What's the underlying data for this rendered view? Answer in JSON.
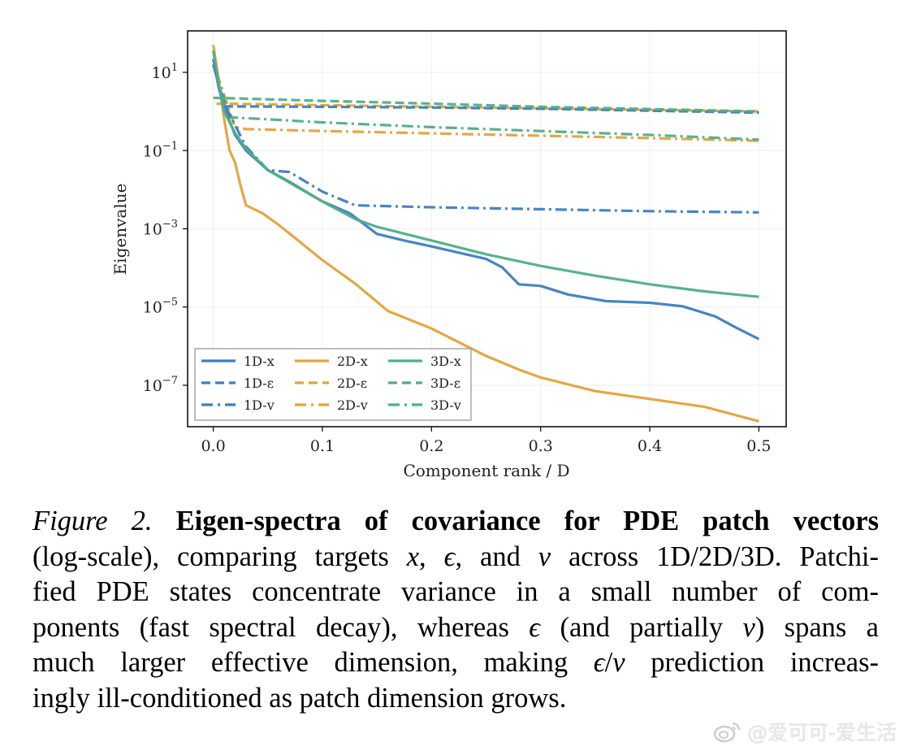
{
  "chart_data": {
    "type": "line",
    "title": "",
    "xlabel": "Component rank / D",
    "ylabel": "Eigenvalue",
    "xscale": "linear",
    "yscale": "log",
    "xlim": [
      -0.0235,
      0.525
    ],
    "ylim_log10": [
      -8.06,
      2.06
    ],
    "xticks": [
      0.0,
      0.1,
      0.2,
      0.3,
      0.4,
      0.5
    ],
    "xtick_labels": [
      "0.0",
      "0.1",
      "0.2",
      "0.3",
      "0.4",
      "0.5"
    ],
    "yticks_log10": [
      1,
      -1,
      -3,
      -5,
      -7
    ],
    "ytick_labels": [
      {
        "base": "10",
        "exp": "1"
      },
      {
        "base": "10",
        "exp": "−1"
      },
      {
        "base": "10",
        "exp": "−3"
      },
      {
        "base": "10",
        "exp": "−5"
      },
      {
        "base": "10",
        "exp": "−7"
      }
    ],
    "grid": true,
    "legend": {
      "placement": "lower-left",
      "columns": 3
    },
    "series": [
      {
        "name": "1D-x",
        "color": "#3d7ebf",
        "dash": "solid",
        "x": [
          0.0,
          0.005,
          0.01,
          0.02,
          0.03,
          0.05,
          0.07,
          0.1,
          0.125,
          0.15,
          0.175,
          0.2,
          0.25,
          0.265,
          0.28,
          0.3,
          0.325,
          0.36,
          0.4,
          0.43,
          0.46,
          0.48,
          0.5
        ],
        "log10_y": [
          1.34,
          0.6,
          0.1,
          -0.6,
          -1.0,
          -1.5,
          -1.8,
          -2.3,
          -2.6,
          -3.13,
          -3.3,
          -3.45,
          -3.77,
          -3.99,
          -4.42,
          -4.46,
          -4.68,
          -4.85,
          -4.89,
          -4.98,
          -5.24,
          -5.54,
          -5.82
        ]
      },
      {
        "name": "1D-ε",
        "color": "#3d7ebf",
        "dash": "dashed",
        "x": [
          0.01,
          0.1,
          0.2,
          0.3,
          0.4,
          0.5
        ],
        "log10_y": [
          0.13,
          0.12,
          0.1,
          0.07,
          0.02,
          -0.03
        ]
      },
      {
        "name": "1D-v",
        "color": "#3d7ebf",
        "dash": "dashdot",
        "x": [
          0.0,
          0.01,
          0.02,
          0.03,
          0.05,
          0.07,
          0.1,
          0.13,
          0.2,
          0.3,
          0.4,
          0.5
        ],
        "log10_y": [
          1.2,
          0.2,
          -0.35,
          -0.9,
          -1.5,
          -1.55,
          -2.05,
          -2.4,
          -2.45,
          -2.5,
          -2.55,
          -2.58
        ]
      },
      {
        "name": "2D-x",
        "color": "#e0a33b",
        "dash": "solid",
        "x": [
          0.0,
          0.005,
          0.01,
          0.015,
          0.02,
          0.025,
          0.03,
          0.045,
          0.06,
          0.08,
          0.1,
          0.13,
          0.16,
          0.2,
          0.25,
          0.28,
          0.3,
          0.35,
          0.4,
          0.45,
          0.5
        ],
        "log10_y": [
          1.7,
          0.8,
          -0.2,
          -1.0,
          -1.3,
          -1.9,
          -2.4,
          -2.6,
          -2.9,
          -3.35,
          -3.8,
          -4.4,
          -5.1,
          -5.55,
          -6.25,
          -6.6,
          -6.8,
          -7.15,
          -7.35,
          -7.55,
          -7.92
        ]
      },
      {
        "name": "2D-ε",
        "color": "#e0a33b",
        "dash": "dashed",
        "x": [
          0.003,
          0.1,
          0.2,
          0.3,
          0.4,
          0.5
        ],
        "log10_y": [
          0.2,
          0.16,
          0.12,
          0.08,
          0.04,
          0.0
        ]
      },
      {
        "name": "2D-v",
        "color": "#e0a33b",
        "dash": "dashdot",
        "x": [
          0.003,
          0.02,
          0.03,
          0.1,
          0.2,
          0.3,
          0.4,
          0.5
        ],
        "log10_y": [
          1.0,
          -0.4,
          -0.45,
          -0.5,
          -0.56,
          -0.62,
          -0.68,
          -0.75
        ]
      },
      {
        "name": "3D-x",
        "color": "#4fae86",
        "dash": "solid",
        "x": [
          0.0,
          0.005,
          0.01,
          0.02,
          0.03,
          0.05,
          0.075,
          0.1,
          0.13,
          0.15,
          0.2,
          0.25,
          0.3,
          0.35,
          0.4,
          0.45,
          0.5
        ],
        "log10_y": [
          1.55,
          0.7,
          0.0,
          -0.55,
          -0.95,
          -1.5,
          -1.9,
          -2.3,
          -2.75,
          -2.95,
          -3.3,
          -3.65,
          -3.95,
          -4.2,
          -4.42,
          -4.6,
          -4.74
        ]
      },
      {
        "name": "3D-ε",
        "color": "#4fae86",
        "dash": "dashed",
        "x": [
          0.0,
          0.1,
          0.2,
          0.3,
          0.4,
          0.5
        ],
        "log10_y": [
          0.35,
          0.27,
          0.2,
          0.12,
          0.06,
          0.0
        ]
      },
      {
        "name": "3D-v",
        "color": "#4fae86",
        "dash": "dashdot",
        "x": [
          0.003,
          0.015,
          0.05,
          0.1,
          0.2,
          0.3,
          0.4,
          0.5
        ],
        "log10_y": [
          1.0,
          -0.15,
          -0.2,
          -0.28,
          -0.4,
          -0.5,
          -0.6,
          -0.72
        ]
      }
    ]
  },
  "caption": {
    "fig_label": "Figure 2.",
    "fig_title": "Eigen-spectra of covariance for PDE patch vectors",
    "lines": [
      [
        "(log-scale), comparing targets ",
        {
          "m": "x"
        },
        ", ",
        {
          "m": "ϵ"
        },
        ", and ",
        {
          "m": "v"
        },
        " across 1D/2D/3D. Patchi-"
      ],
      [
        "fied PDE states concentrate variance in a small number of com-"
      ],
      [
        "ponents (fast spectral decay), whereas ",
        {
          "m": "ϵ"
        },
        " (and partially ",
        {
          "m": "v"
        },
        ") spans a"
      ],
      [
        "much larger effective dimension, making ",
        {
          "m": "ϵ"
        },
        "/",
        {
          "m": "v"
        },
        " prediction increas-"
      ],
      [
        "ingly ill-conditioned as patch dimension grows."
      ]
    ]
  },
  "watermark": {
    "text": "@爱可可-爱生活",
    "icon": "weibo-logo-icon"
  }
}
